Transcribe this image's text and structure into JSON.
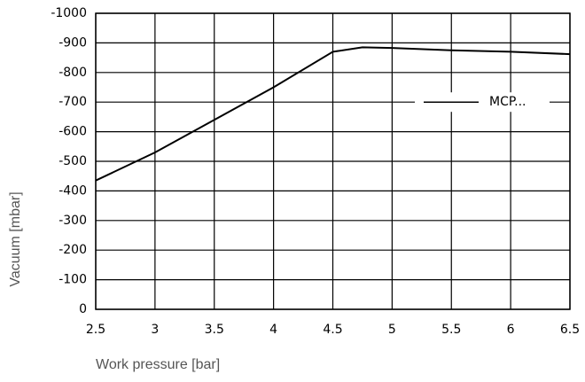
{
  "chart_data": {
    "type": "line",
    "x_label": "Work pressure [bar]",
    "y_label": "Vacuum [mbar]",
    "x": [
      2.5,
      3,
      3.5,
      4,
      4.5,
      4.75,
      5,
      5.5,
      6,
      6.5
    ],
    "series": [
      {
        "name": "MCP...",
        "color": "#000000",
        "values": [
          -435,
          -530,
          -640,
          -750,
          -870,
          -885,
          -883,
          -875,
          -870,
          -862
        ]
      }
    ],
    "xlim": [
      2.5,
      6.5
    ],
    "xticks": [
      2.5,
      3,
      3.5,
      4,
      4.5,
      5,
      5.5,
      6,
      6.5
    ],
    "ylim": [
      0,
      -1000
    ],
    "yticks": [
      0,
      -100,
      -200,
      -300,
      -400,
      -500,
      -600,
      -700,
      -800,
      -900,
      -1000
    ],
    "grid": true,
    "legend": "right"
  }
}
